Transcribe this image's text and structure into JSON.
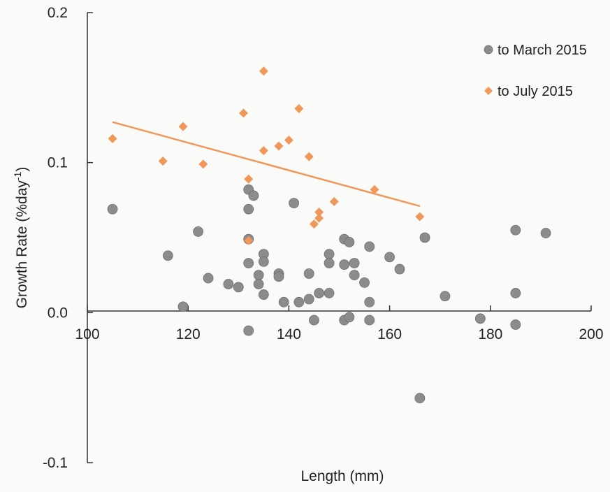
{
  "chart_data": {
    "type": "scatter",
    "title": "",
    "xlabel": "Length (mm)",
    "ylabel_main": "Growth Rate (%day",
    "ylabel_sup": "-1",
    "ylabel_tail": ")",
    "xlim": [
      100,
      200
    ],
    "ylim": [
      -0.1,
      0.2
    ],
    "xticks": [
      100,
      120,
      140,
      160,
      180,
      200
    ],
    "xtick_labels": [
      "100",
      "120",
      "140",
      "160",
      "180",
      "200"
    ],
    "yticks": [
      0.2,
      0.1,
      0.0,
      -0.1
    ],
    "ytick_labels": [
      "0.2",
      "0.1",
      "0.0",
      "-0.1"
    ],
    "grid": false,
    "legend_position": "top-right",
    "series": [
      {
        "name": "to March 2015",
        "marker": "circle",
        "color": "#8c8c8c",
        "points": [
          [
            105,
            0.069
          ],
          [
            116,
            0.038
          ],
          [
            119,
            0.004
          ],
          [
            122,
            0.054
          ],
          [
            124,
            0.023
          ],
          [
            128,
            0.019
          ],
          [
            130,
            0.017
          ],
          [
            132,
            0.082
          ],
          [
            132,
            0.069
          ],
          [
            132,
            0.049
          ],
          [
            132,
            0.033
          ],
          [
            132,
            -0.012
          ],
          [
            133,
            0.078
          ],
          [
            134,
            0.025
          ],
          [
            134,
            0.019
          ],
          [
            135,
            0.039
          ],
          [
            135,
            0.034
          ],
          [
            135,
            0.012
          ],
          [
            138,
            0.026
          ],
          [
            138,
            0.024
          ],
          [
            139,
            0.007
          ],
          [
            141,
            0.073
          ],
          [
            142,
            0.007
          ],
          [
            144,
            0.026
          ],
          [
            144,
            0.009
          ],
          [
            145,
            -0.005
          ],
          [
            146,
            0.013
          ],
          [
            148,
            0.039
          ],
          [
            148,
            0.033
          ],
          [
            148,
            0.013
          ],
          [
            151,
            0.049
          ],
          [
            151,
            0.032
          ],
          [
            151,
            -0.005
          ],
          [
            152,
            0.047
          ],
          [
            152,
            -0.003
          ],
          [
            153,
            0.033
          ],
          [
            153,
            0.025
          ],
          [
            155,
            0.02
          ],
          [
            156,
            0.044
          ],
          [
            156,
            0.007
          ],
          [
            156,
            -0.005
          ],
          [
            160,
            0.037
          ],
          [
            162,
            0.029
          ],
          [
            166,
            -0.057
          ],
          [
            167,
            0.05
          ],
          [
            171,
            0.011
          ],
          [
            178,
            -0.004
          ],
          [
            185,
            0.055
          ],
          [
            185,
            0.013
          ],
          [
            185,
            -0.008
          ],
          [
            191,
            0.053
          ]
        ]
      },
      {
        "name": "to July 2015",
        "marker": "diamond",
        "color": "#f0975a",
        "points": [
          [
            105,
            0.116
          ],
          [
            115,
            0.101
          ],
          [
            119,
            0.124
          ],
          [
            123,
            0.099
          ],
          [
            131,
            0.133
          ],
          [
            132,
            0.089
          ],
          [
            132,
            0.048
          ],
          [
            135,
            0.161
          ],
          [
            135,
            0.108
          ],
          [
            138,
            0.111
          ],
          [
            140,
            0.115
          ],
          [
            142,
            0.136
          ],
          [
            144,
            0.104
          ],
          [
            145,
            0.059
          ],
          [
            146,
            0.063
          ],
          [
            146,
            0.067
          ],
          [
            149,
            0.074
          ],
          [
            157,
            0.082
          ],
          [
            166,
            0.064
          ]
        ]
      }
    ],
    "trendline": {
      "series": "to July 2015",
      "color": "#f0975a",
      "x": [
        105,
        166
      ],
      "y": [
        0.127,
        0.071
      ]
    }
  }
}
